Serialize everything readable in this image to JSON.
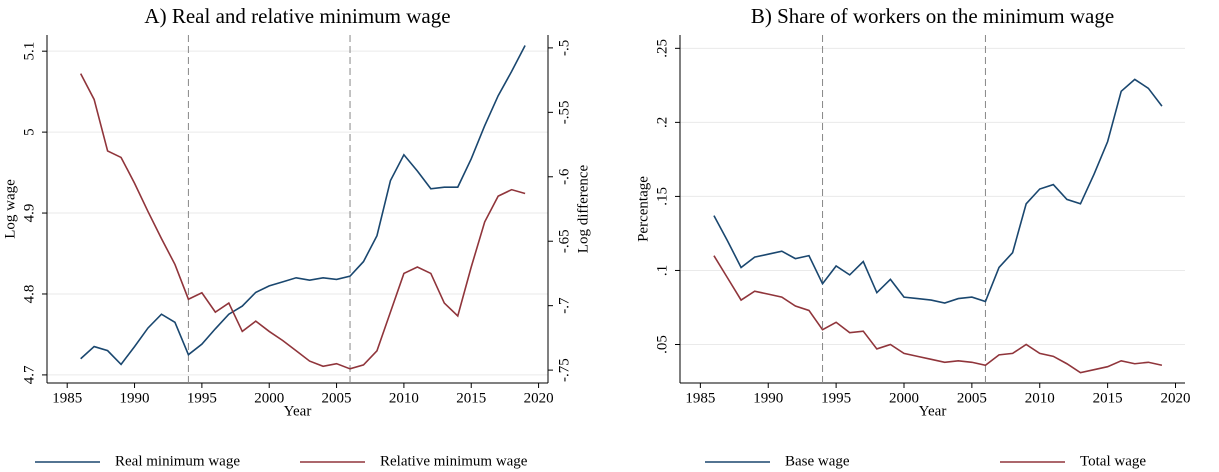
{
  "chart_data": [
    {
      "type": "line",
      "title": "A) Real and relative minimum wage",
      "x_label": "Year",
      "y_label": "Log wage",
      "y2_label": "Log difference",
      "x": [
        1986,
        1987,
        1988,
        1989,
        1990,
        1991,
        1992,
        1993,
        1994,
        1995,
        1996,
        1997,
        1998,
        1999,
        2000,
        2001,
        2002,
        2003,
        2004,
        2005,
        2006,
        2007,
        2008,
        2009,
        2010,
        2011,
        2012,
        2013,
        2014,
        2015,
        2016,
        2017,
        2018,
        2019
      ],
      "series": [
        {
          "name": "Real minimum wage",
          "color": "#1a476f",
          "values": [
            4.72,
            4.735,
            4.73,
            4.713,
            4.735,
            4.758,
            4.775,
            4.765,
            4.725,
            4.738,
            4.757,
            4.775,
            4.785,
            4.802,
            4.81,
            4.815,
            4.82,
            4.817,
            4.82,
            4.818,
            4.822,
            4.84,
            4.872,
            4.94,
            4.972,
            4.952,
            4.93,
            4.932,
            4.932,
            4.967,
            5.008,
            5.045,
            5.075,
            5.107
          ]
        },
        {
          "name": "Relative minimum wage",
          "color": "#90353b",
          "axis": "y2",
          "values": [
            -0.52,
            -0.54,
            -0.58,
            -0.585,
            -0.605,
            -0.627,
            -0.648,
            -0.668,
            -0.695,
            -0.69,
            -0.705,
            -0.698,
            -0.72,
            -0.712,
            -0.72,
            -0.727,
            -0.735,
            -0.743,
            -0.747,
            -0.745,
            -0.749,
            -0.746,
            -0.735,
            -0.705,
            -0.675,
            -0.67,
            -0.675,
            -0.698,
            -0.708,
            -0.67,
            -0.635,
            -0.615,
            -0.61,
            -0.613
          ]
        }
      ],
      "xlim": [
        1983.5,
        2020.7
      ],
      "xticks": [
        1985,
        1990,
        1995,
        2000,
        2005,
        2010,
        2015,
        2020
      ],
      "ylim": [
        4.69,
        5.12
      ],
      "yticks": [
        4.7,
        4.8,
        4.9,
        5,
        5.1
      ],
      "y2lim": [
        -0.76,
        -0.49
      ],
      "y2ticks": [
        {
          "value": -0.5,
          "label": "-.5"
        },
        {
          "value": -0.55,
          "label": "-.55"
        },
        {
          "value": -0.6,
          "label": "-.6"
        },
        {
          "value": -0.65,
          "label": "-.65"
        },
        {
          "value": -0.7,
          "label": "-.7"
        },
        {
          "value": -0.75,
          "label": "-.75"
        }
      ],
      "vlines": [
        1994,
        2006
      ],
      "grid": true
    },
    {
      "type": "line",
      "title": "B) Share of workers on the minimum wage",
      "x_label": "Year",
      "y_label": "Percentage",
      "x": [
        1986,
        1987,
        1988,
        1989,
        1990,
        1991,
        1992,
        1993,
        1994,
        1995,
        1996,
        1997,
        1998,
        1999,
        2000,
        2001,
        2002,
        2003,
        2004,
        2005,
        2006,
        2007,
        2008,
        2009,
        2010,
        2011,
        2012,
        2013,
        2014,
        2015,
        2016,
        2017,
        2018,
        2019
      ],
      "series": [
        {
          "name": "Base wage",
          "color": "#1a476f",
          "values": [
            0.137,
            0.12,
            0.102,
            0.109,
            0.111,
            0.113,
            0.108,
            0.11,
            0.091,
            0.103,
            0.097,
            0.106,
            0.085,
            0.094,
            0.082,
            0.081,
            0.08,
            0.078,
            0.081,
            0.082,
            0.079,
            0.102,
            0.112,
            0.145,
            0.155,
            0.158,
            0.148,
            0.145,
            0.165,
            0.187,
            0.221,
            0.229,
            0.223,
            0.211
          ]
        },
        {
          "name": "Total wage",
          "color": "#90353b",
          "values": [
            0.11,
            0.095,
            0.08,
            0.086,
            0.084,
            0.082,
            0.076,
            0.073,
            0.06,
            0.065,
            0.058,
            0.059,
            0.047,
            0.05,
            0.044,
            0.042,
            0.04,
            0.038,
            0.039,
            0.038,
            0.036,
            0.043,
            0.044,
            0.05,
            0.044,
            0.042,
            0.037,
            0.031,
            0.033,
            0.035,
            0.039,
            0.037,
            0.038,
            0.036
          ]
        }
      ],
      "xlim": [
        1983.5,
        2020.7
      ],
      "xticks": [
        1985,
        1990,
        1995,
        2000,
        2005,
        2010,
        2015,
        2020
      ],
      "ylim": [
        0.024,
        0.259
      ],
      "yticks": [
        {
          "value": 0.05,
          "label": ".05"
        },
        {
          "value": 0.1,
          "label": ".1"
        },
        {
          "value": 0.15,
          "label": ".15"
        },
        {
          "value": 0.2,
          "label": ".2"
        },
        {
          "value": 0.25,
          "label": ".25"
        }
      ],
      "vlines": [
        1994,
        2006
      ],
      "grid": true
    }
  ]
}
